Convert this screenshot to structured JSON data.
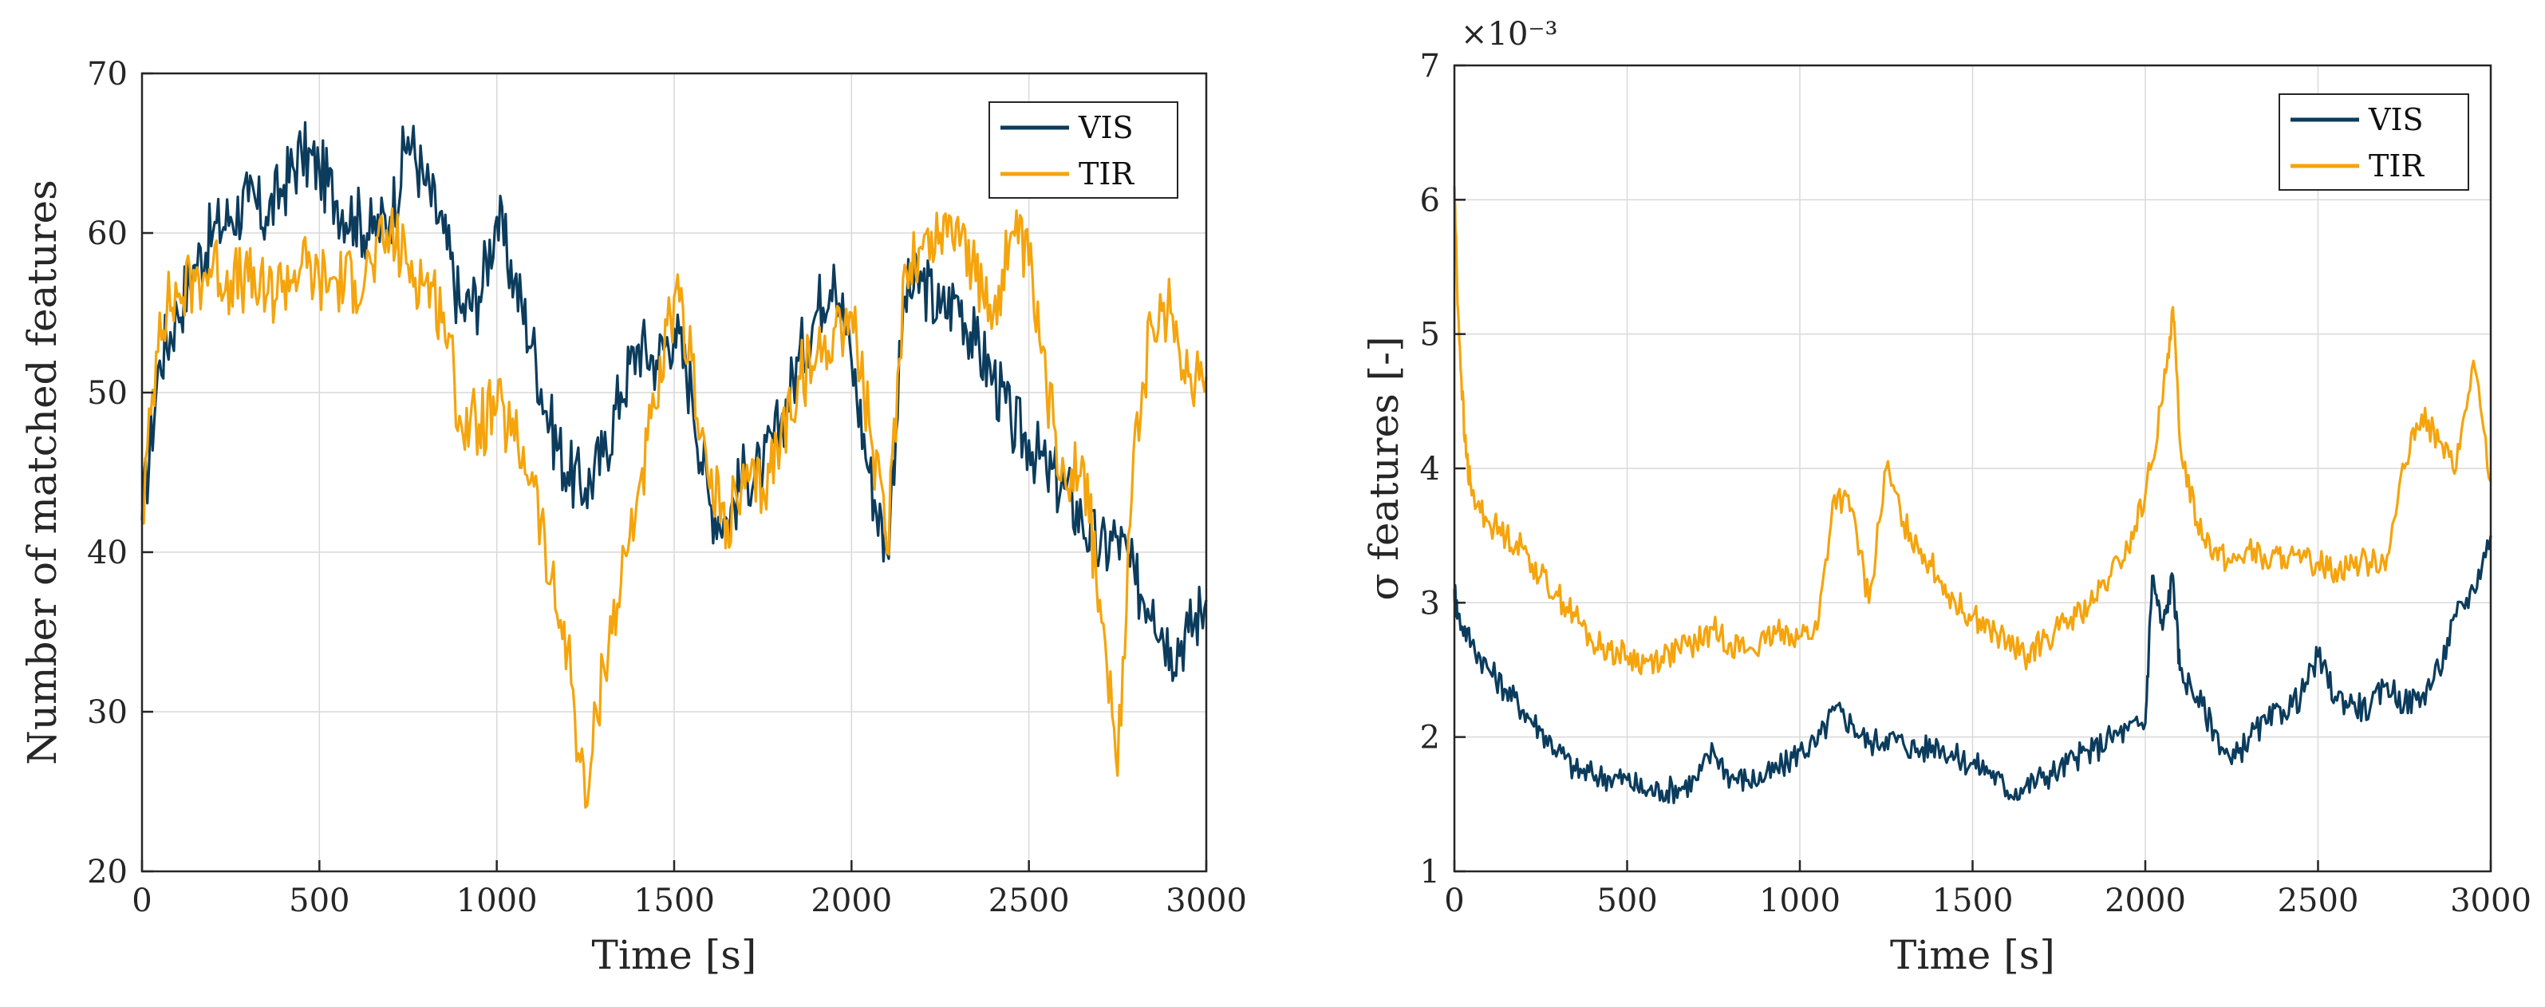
{
  "chart_data": [
    {
      "type": "line",
      "xlabel": "Time [s]",
      "ylabel": "Number of matched features",
      "xlim": [
        0,
        3000
      ],
      "ylim": [
        20,
        70
      ],
      "xticks": [
        0,
        500,
        1000,
        1500,
        2000,
        2500,
        3000
      ],
      "yticks": [
        20,
        30,
        40,
        50,
        60,
        70
      ],
      "xtick_labels": [
        "0",
        "500",
        "1000",
        "1500",
        "2000",
        "2500",
        "3000"
      ],
      "ytick_labels": [
        "20",
        "30",
        "40",
        "50",
        "60",
        "70"
      ],
      "grid": true,
      "legend_position": "top-right",
      "series": [
        {
          "name": "VIS",
          "color": "#0b3c5d",
          "x": [
            0,
            50,
            100,
            150,
            200,
            250,
            300,
            350,
            400,
            450,
            500,
            550,
            600,
            650,
            700,
            750,
            800,
            850,
            900,
            950,
            1000,
            1050,
            1100,
            1150,
            1200,
            1250,
            1300,
            1350,
            1400,
            1450,
            1500,
            1550,
            1600,
            1650,
            1700,
            1750,
            1800,
            1850,
            1900,
            1950,
            2000,
            2050,
            2100,
            2150,
            2200,
            2250,
            2300,
            2350,
            2400,
            2450,
            2500,
            2550,
            2600,
            2650,
            2700,
            2750,
            2800,
            2850,
            2900,
            2950,
            3000
          ],
          "values": [
            42,
            52,
            55,
            58,
            60,
            61,
            62,
            61,
            63,
            65,
            64,
            62,
            61,
            60,
            61,
            66,
            63,
            60,
            55,
            56,
            61,
            57,
            53,
            48,
            45,
            44,
            46,
            50,
            53,
            52,
            54,
            50,
            43,
            42,
            45,
            45,
            48,
            52,
            55,
            58,
            52,
            45,
            40,
            56,
            57,
            55,
            56,
            53,
            51,
            48,
            47,
            45,
            44,
            42,
            40,
            41,
            38,
            37,
            34,
            35,
            37
          ]
        },
        {
          "name": "TIR",
          "color": "#f5a40c",
          "x": [
            0,
            50,
            100,
            150,
            200,
            250,
            300,
            350,
            400,
            450,
            500,
            550,
            600,
            650,
            700,
            750,
            800,
            850,
            900,
            950,
            1000,
            1050,
            1100,
            1150,
            1200,
            1250,
            1300,
            1350,
            1400,
            1450,
            1500,
            1550,
            1600,
            1650,
            1700,
            1750,
            1800,
            1850,
            1900,
            1950,
            2000,
            2050,
            2100,
            2150,
            2200,
            2250,
            2300,
            2350,
            2400,
            2450,
            2500,
            2550,
            2600,
            2650,
            2700,
            2750,
            2800,
            2850,
            2900,
            2950,
            3000
          ],
          "values": [
            42,
            55,
            56,
            57,
            58,
            57,
            57,
            56,
            57,
            58,
            57,
            57,
            57,
            58,
            60,
            58,
            57,
            55,
            48,
            48,
            49,
            47,
            45,
            38,
            34,
            24,
            33,
            38,
            44,
            49,
            56,
            52,
            44,
            42,
            44,
            44,
            47,
            51,
            52,
            54,
            55,
            48,
            40,
            58,
            59,
            60,
            61,
            57,
            55,
            60,
            58,
            50,
            45,
            46,
            37,
            26,
            48,
            54,
            55,
            51,
            51
          ]
        }
      ]
    },
    {
      "type": "line",
      "xlabel": "Time [s]",
      "ylabel": "σ features [-]",
      "exponent_label": "×10⁻³",
      "xlim": [
        0,
        3000
      ],
      "ylim": [
        1,
        7
      ],
      "xticks": [
        0,
        500,
        1000,
        1500,
        2000,
        2500,
        3000
      ],
      "yticks": [
        1,
        2,
        3,
        4,
        5,
        6,
        7
      ],
      "xtick_labels": [
        "0",
        "500",
        "1000",
        "1500",
        "2000",
        "2500",
        "3000"
      ],
      "ytick_labels": [
        "1",
        "2",
        "3",
        "4",
        "5",
        "6",
        "7"
      ],
      "grid": true,
      "legend_position": "top-right",
      "series": [
        {
          "name": "VIS",
          "color": "#0b3c5d",
          "x": [
            0,
            10,
            50,
            100,
            150,
            200,
            250,
            300,
            350,
            400,
            450,
            500,
            550,
            600,
            650,
            700,
            750,
            800,
            850,
            900,
            950,
            1000,
            1050,
            1100,
            1150,
            1200,
            1250,
            1300,
            1350,
            1400,
            1450,
            1500,
            1550,
            1600,
            1650,
            1700,
            1750,
            1800,
            1850,
            1900,
            1950,
            2000,
            2020,
            2050,
            2080,
            2100,
            2150,
            2200,
            2250,
            2300,
            2350,
            2400,
            2450,
            2500,
            2550,
            2600,
            2650,
            2700,
            2750,
            2800,
            2850,
            2900,
            2950,
            3000
          ],
          "values": [
            3.1,
            2.9,
            2.7,
            2.5,
            2.35,
            2.2,
            2.05,
            1.9,
            1.75,
            1.72,
            1.7,
            1.68,
            1.6,
            1.6,
            1.62,
            1.68,
            1.9,
            1.7,
            1.68,
            1.7,
            1.78,
            1.9,
            1.95,
            2.2,
            2.1,
            1.95,
            2.0,
            1.95,
            1.9,
            1.95,
            1.85,
            1.8,
            1.75,
            1.6,
            1.62,
            1.7,
            1.75,
            1.85,
            1.9,
            2.0,
            2.05,
            2.1,
            3.2,
            2.8,
            3.2,
            2.5,
            2.3,
            2.05,
            1.8,
            2.0,
            2.1,
            2.2,
            2.3,
            2.6,
            2.3,
            2.25,
            2.2,
            2.4,
            2.25,
            2.3,
            2.5,
            2.9,
            3.1,
            3.5
          ]
        },
        {
          "name": "TIR",
          "color": "#f5a40c",
          "x": [
            0,
            10,
            30,
            50,
            100,
            150,
            200,
            250,
            300,
            350,
            400,
            450,
            500,
            550,
            600,
            650,
            700,
            750,
            800,
            850,
            900,
            950,
            1000,
            1050,
            1100,
            1150,
            1200,
            1250,
            1300,
            1350,
            1400,
            1450,
            1500,
            1550,
            1600,
            1650,
            1700,
            1750,
            1800,
            1850,
            1900,
            1950,
            2000,
            2050,
            2080,
            2100,
            2150,
            2200,
            2250,
            2300,
            2350,
            2400,
            2450,
            2500,
            2550,
            2600,
            2650,
            2700,
            2750,
            2800,
            2850,
            2900,
            2950,
            3000
          ],
          "values": [
            6.1,
            5.2,
            4.2,
            3.8,
            3.6,
            3.5,
            3.4,
            3.2,
            3.05,
            2.9,
            2.7,
            2.65,
            2.6,
            2.55,
            2.6,
            2.65,
            2.7,
            2.8,
            2.7,
            2.65,
            2.7,
            2.8,
            2.75,
            2.8,
            3.8,
            3.7,
            3.0,
            4.0,
            3.6,
            3.4,
            3.2,
            3.0,
            2.9,
            2.8,
            2.7,
            2.6,
            2.7,
            2.8,
            2.9,
            3.0,
            3.2,
            3.4,
            3.8,
            4.5,
            5.2,
            4.2,
            3.6,
            3.4,
            3.3,
            3.4,
            3.3,
            3.35,
            3.3,
            3.3,
            3.25,
            3.3,
            3.3,
            3.35,
            4.0,
            4.4,
            4.2,
            4.0,
            4.8,
            3.9
          ]
        }
      ]
    }
  ]
}
